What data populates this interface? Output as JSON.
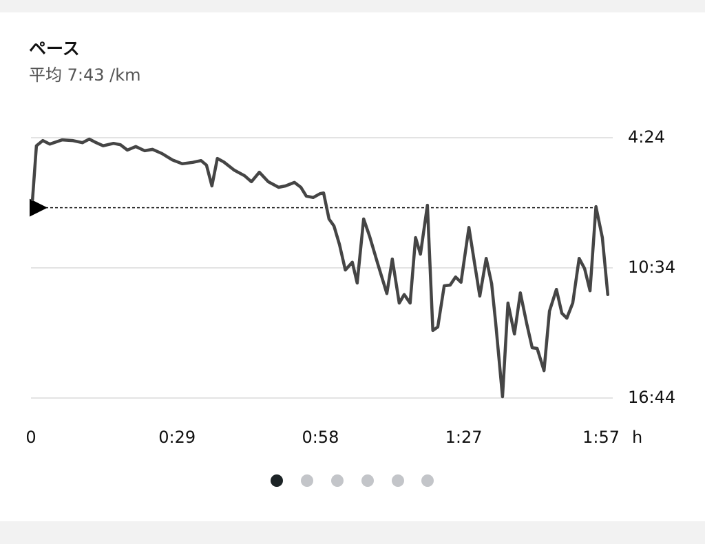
{
  "chart_data": {
    "type": "line",
    "title": "ペース",
    "subtitle": "平均 7:43 /km",
    "x": [
      0.3,
      1.1,
      2.4,
      3.8,
      6.3,
      8.4,
      10.4,
      11.8,
      13.2,
      14.6,
      16.7,
      18.1,
      19.5,
      21.2,
      23.0,
      24.6,
      26.5,
      28.6,
      30.6,
      32.7,
      34.4,
      35.5,
      36.6,
      37.7,
      39.0,
      41.1,
      43.2,
      44.6,
      46.2,
      48.0,
      50.1,
      51.5,
      53.3,
      54.6,
      55.7,
      57.1,
      58.5,
      59.2,
      60.3,
      61.3,
      62.4,
      63.6,
      65.0,
      66.0,
      67.3,
      68.5,
      70.1,
      72.0,
      73.1,
      74.5,
      75.5,
      76.7,
      77.8,
      78.8,
      80.2,
      81.3,
      82.3,
      83.6,
      84.8,
      85.9,
      87.0,
      88.6,
      89.8,
      90.8,
      92.1,
      93.2,
      94.0,
      95.4,
      96.5,
      97.8,
      99.0,
      100.3,
      101.4,
      102.4,
      103.8,
      104.9,
      106.3,
      107.4,
      108.4,
      109.6,
      110.9,
      112.0,
      113.1,
      114.3,
      115.6,
      116.7
    ],
    "values": [
      440,
      287,
      272,
      282,
      270,
      272,
      278,
      268,
      278,
      287,
      280,
      284,
      299,
      289,
      301,
      297,
      309,
      327,
      338,
      334,
      329,
      342,
      401,
      323,
      333,
      356,
      372,
      389,
      362,
      389,
      405,
      401,
      391,
      405,
      430,
      434,
      423,
      421,
      495,
      515,
      567,
      640,
      618,
      677,
      495,
      544,
      620,
      707,
      609,
      734,
      710,
      734,
      548,
      595,
      456,
      812,
      802,
      685,
      683,
      660,
      675,
      519,
      626,
      714,
      607,
      679,
      789,
      1000,
      734,
      822,
      705,
      793,
      861,
      863,
      926,
      757,
      695,
      763,
      777,
      734,
      607,
      636,
      699,
      460,
      548,
      710
    ],
    "color": "#454545",
    "average": 463,
    "xlim": [
      0,
      117
    ],
    "xticks": [
      0,
      {
        "value": 29,
        "label": "0:29"
      },
      {
        "value": 58,
        "label": "0:58"
      },
      {
        "value": 87,
        "label": "1:27"
      },
      {
        "value": 117,
        "label": "1:57"
      }
    ],
    "x_unit": "h",
    "ylim": [
      264,
      1004
    ],
    "y_inverted": true,
    "yticks": [
      {
        "value": 264,
        "label": "4:24"
      },
      {
        "value": 634,
        "label": "10:34"
      },
      {
        "value": 1004,
        "label": "16:44"
      }
    ],
    "grid": true
  }
}
